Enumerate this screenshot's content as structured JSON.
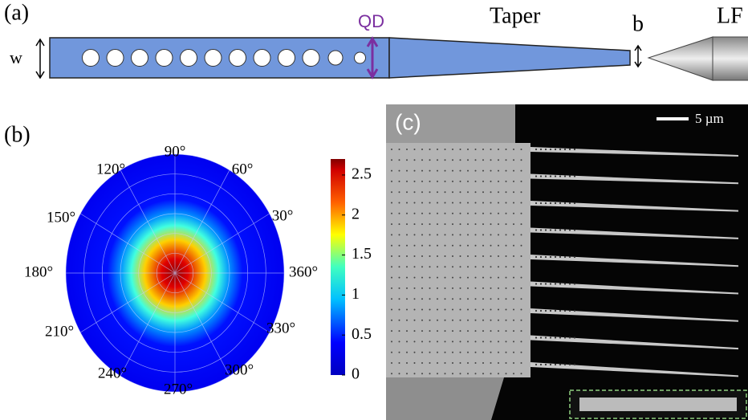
{
  "panel_a": {
    "label": "(a)",
    "width_label": "w",
    "qd_label": "QD",
    "taper_label": "Taper",
    "b_label": "b",
    "fiber_label": "LF"
  },
  "panel_b": {
    "label": "(b)",
    "angle_labels": [
      "90°",
      "60°",
      "30°",
      "360°",
      "330°",
      "300°",
      "270°",
      "240°",
      "210°",
      "180°",
      "150°",
      "120°"
    ],
    "colorbar": {
      "lim": [
        0,
        2.7
      ],
      "ticks": [
        0,
        0.5,
        1,
        1.5,
        2,
        2.5
      ]
    }
  },
  "panel_c": {
    "label": "(c)",
    "scale_label": "5 µm"
  }
}
